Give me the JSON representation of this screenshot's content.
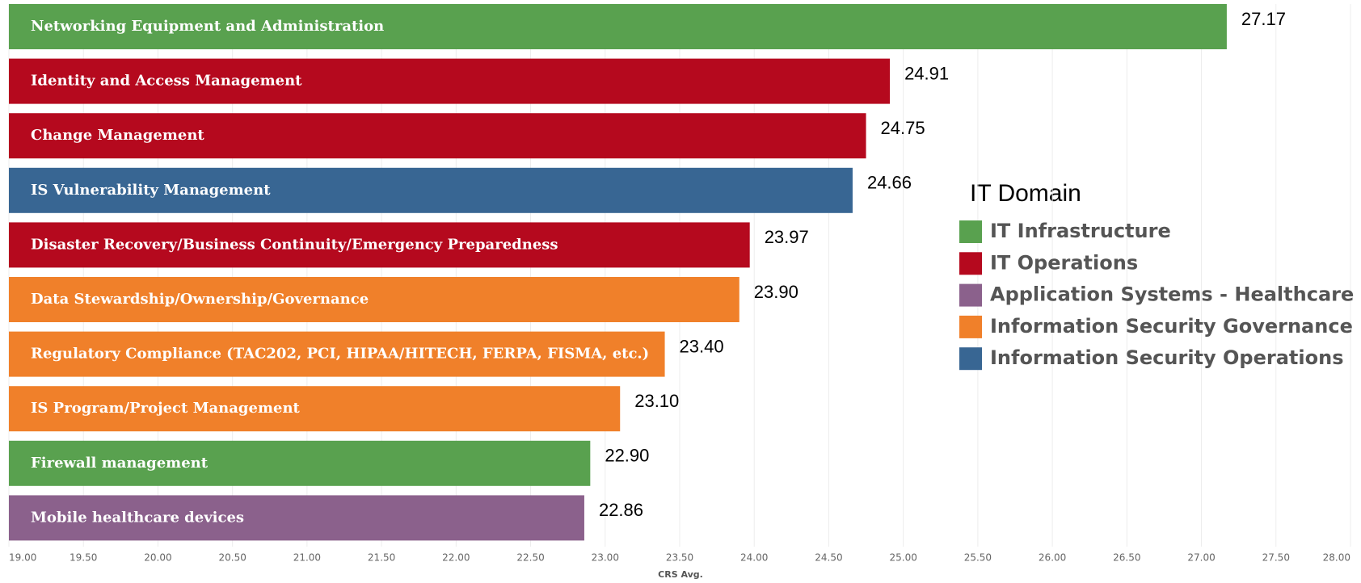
{
  "chart_data": {
    "type": "hbar",
    "x_label": "CRS Avg.",
    "categories": [
      "Networking Equipment and Administration",
      "Identity and Access Management",
      "Change Management",
      "IS Vulnerability Management",
      "Disaster Recovery/Business Continuity/Emergency Preparedness",
      "Data Stewardship/Ownership/Governance",
      "Regulatory Compliance (TAC202, PCI, HIPAA/HITECH, FERPA, FISMA, etc.)",
      "IS Program/Project Management",
      "Firewall management",
      "Mobile healthcare devices"
    ],
    "values": [
      27.17,
      24.91,
      24.75,
      24.66,
      23.97,
      23.9,
      23.4,
      23.1,
      22.9,
      22.86
    ],
    "value_labels": [
      "27.17",
      "24.91",
      "24.75",
      "24.66",
      "23.97",
      "23.90",
      "23.40",
      "23.10",
      "22.90",
      "22.86"
    ],
    "colors": [
      "#59a14f",
      "#b5091e",
      "#b5091e",
      "#386693",
      "#b5091e",
      "#f0802a",
      "#f0802a",
      "#f0802a",
      "#59a14f",
      "#8b618c"
    ],
    "xlim": [
      19,
      28
    ],
    "xticks": [
      {
        "value": 19,
        "label": "19.00"
      },
      {
        "value": 19.5,
        "label": "19.50"
      },
      {
        "value": 20,
        "label": "20.00"
      },
      {
        "value": 20.5,
        "label": "20.50"
      },
      {
        "value": 21,
        "label": "21.00"
      },
      {
        "value": 21.5,
        "label": "21.50"
      },
      {
        "value": 22,
        "label": "22.00"
      },
      {
        "value": 22.5,
        "label": "22.50"
      },
      {
        "value": 23,
        "label": "23.00"
      },
      {
        "value": 23.5,
        "label": "23.50"
      },
      {
        "value": 24,
        "label": "24.00"
      },
      {
        "value": 24.5,
        "label": "24.50"
      },
      {
        "value": 25,
        "label": "25.00"
      },
      {
        "value": 25.5,
        "label": "25.50"
      },
      {
        "value": 26,
        "label": "26.00"
      },
      {
        "value": 26.5,
        "label": "26.50"
      },
      {
        "value": 27,
        "label": "27.00"
      },
      {
        "value": 27.5,
        "label": "27.50"
      },
      {
        "value": 28,
        "label": "28.00"
      }
    ],
    "grid": true,
    "legend": {
      "title": "IT Domain",
      "items": [
        {
          "name": "IT Infrastructure",
          "color": "#59a14f"
        },
        {
          "name": "IT Operations",
          "color": "#b5091e"
        },
        {
          "name": "Application Systems - Healthcare",
          "color": "#8b618c"
        },
        {
          "name": "Information Security Governance",
          "color": "#f0802a"
        },
        {
          "name": "Information Security Operations",
          "color": "#386693"
        }
      ]
    }
  }
}
